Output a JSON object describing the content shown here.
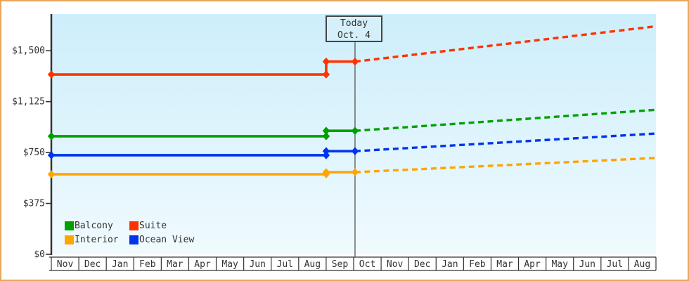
{
  "chart_data": {
    "type": "line",
    "title": "",
    "xlabel": "",
    "ylabel": "",
    "months": [
      "Nov",
      "Dec",
      "Jan",
      "Feb",
      "Mar",
      "Apr",
      "May",
      "Jun",
      "Jul",
      "Aug",
      "Sep",
      "Oct",
      "Nov",
      "Dec",
      "Jan",
      "Feb",
      "Mar",
      "Apr",
      "May",
      "Jun",
      "Jul",
      "Aug"
    ],
    "y_ticks": [
      {
        "label": "$1,500",
        "value": 1500
      },
      {
        "label": "$1,125",
        "value": 1125
      },
      {
        "label": "$750",
        "value": 750
      },
      {
        "label": "$375",
        "value": 375
      },
      {
        "label": "$0",
        "value": 0
      }
    ],
    "ylim": [
      0,
      1760
    ],
    "today": {
      "line1": "Today",
      "line2": "Oct. 4",
      "month_index": 11.05
    },
    "series": [
      {
        "name": "Suite",
        "color": "#ff3300",
        "solid": [
          [
            0,
            1325
          ],
          [
            10,
            1325
          ],
          [
            10,
            1420
          ],
          [
            11.05,
            1420
          ]
        ],
        "dashed": [
          [
            11.05,
            1420
          ],
          [
            22,
            1680
          ]
        ],
        "markers": [
          [
            0,
            1325
          ],
          [
            10,
            1325
          ],
          [
            10,
            1420
          ],
          [
            11.05,
            1420
          ]
        ]
      },
      {
        "name": "Balcony",
        "color": "#00a000",
        "solid": [
          [
            0,
            870
          ],
          [
            10,
            870
          ],
          [
            10,
            910
          ],
          [
            11.05,
            910
          ]
        ],
        "dashed": [
          [
            11.05,
            910
          ],
          [
            22,
            1065
          ]
        ],
        "markers": [
          [
            0,
            870
          ],
          [
            10,
            870
          ],
          [
            10,
            910
          ],
          [
            11.05,
            910
          ]
        ]
      },
      {
        "name": "Ocean View",
        "color": "#0033ee",
        "solid": [
          [
            0,
            730
          ],
          [
            10,
            730
          ],
          [
            10,
            760
          ],
          [
            11.05,
            760
          ]
        ],
        "dashed": [
          [
            11.05,
            760
          ],
          [
            22,
            890
          ]
        ],
        "markers": [
          [
            0,
            730
          ],
          [
            10,
            730
          ],
          [
            10,
            760
          ],
          [
            11.05,
            760
          ]
        ]
      },
      {
        "name": "Interior",
        "color": "#ffa500",
        "solid": [
          [
            0,
            590
          ],
          [
            10,
            590
          ],
          [
            10,
            605
          ],
          [
            11.05,
            605
          ]
        ],
        "dashed": [
          [
            11.05,
            605
          ],
          [
            22,
            710
          ]
        ],
        "markers": [
          [
            0,
            590
          ],
          [
            10,
            590
          ],
          [
            10,
            605
          ],
          [
            11.05,
            605
          ]
        ]
      }
    ],
    "legend": [
      {
        "label": "Balcony",
        "color": "#00a000"
      },
      {
        "label": "Suite",
        "color": "#ff3300"
      },
      {
        "label": "Interior",
        "color": "#ffa500"
      },
      {
        "label": "Ocean View",
        "color": "#0033ee"
      }
    ],
    "legend_position": "bottom-left",
    "grid": false,
    "colors": {
      "plot_bg_top": "#cdeefb",
      "plot_bg_bottom": "#f0fafe",
      "axis": "#333333",
      "month_band": "#333333",
      "today_line": "#555555",
      "frame_border": "#eaa55c",
      "text": "#333333",
      "today_box_bg": "#d6f0fb"
    }
  }
}
